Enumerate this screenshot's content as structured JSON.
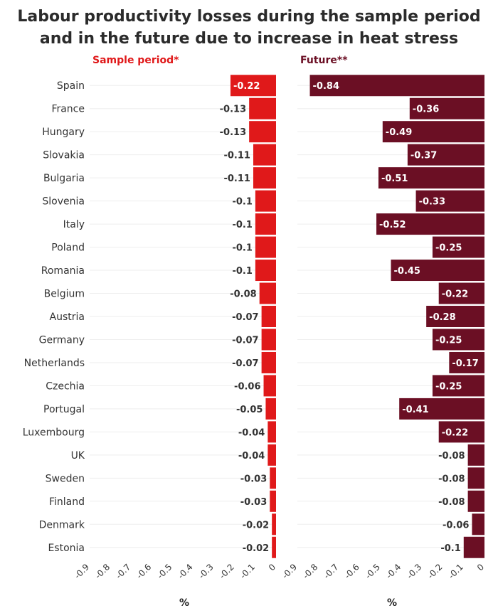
{
  "chart_data": {
    "type": "bar",
    "title_lines": [
      "Labour productivity losses during the sample period",
      "and in the future due to increase in heat stress"
    ],
    "categories": [
      "Spain",
      "France",
      "Hungary",
      "Slovakia",
      "Bulgaria",
      "Slovenia",
      "Italy",
      "Poland",
      "Romania",
      "Belgium",
      "Austria",
      "Germany",
      "Netherlands",
      "Czechia",
      "Portugal",
      "Luxembourg",
      "UK",
      "Sweden",
      "Finland",
      "Denmark",
      "Estonia"
    ],
    "series": [
      {
        "name": "Sample period*",
        "color": "#e0191a",
        "values": [
          -0.22,
          -0.13,
          -0.13,
          -0.11,
          -0.11,
          -0.1,
          -0.1,
          -0.1,
          -0.1,
          -0.08,
          -0.07,
          -0.07,
          -0.07,
          -0.06,
          -0.05,
          -0.04,
          -0.04,
          -0.03,
          -0.03,
          -0.02,
          -0.02
        ]
      },
      {
        "name": "Future**",
        "color": "#6b0f24",
        "values": [
          -0.84,
          -0.36,
          -0.49,
          -0.37,
          -0.51,
          -0.33,
          -0.52,
          -0.25,
          -0.45,
          -0.22,
          -0.28,
          -0.25,
          -0.17,
          -0.25,
          -0.41,
          -0.22,
          -0.08,
          -0.08,
          -0.08,
          -0.06,
          -0.1
        ]
      }
    ],
    "xlim": [
      -0.9,
      0
    ],
    "xticks": [
      "-0.9",
      "-0.8",
      "-0.7",
      "-0.6",
      "-0.5",
      "-0.4",
      "-0.3",
      "-0.2",
      "-0.1",
      "0"
    ],
    "xlabel": "%",
    "label_threshold": -0.15
  }
}
